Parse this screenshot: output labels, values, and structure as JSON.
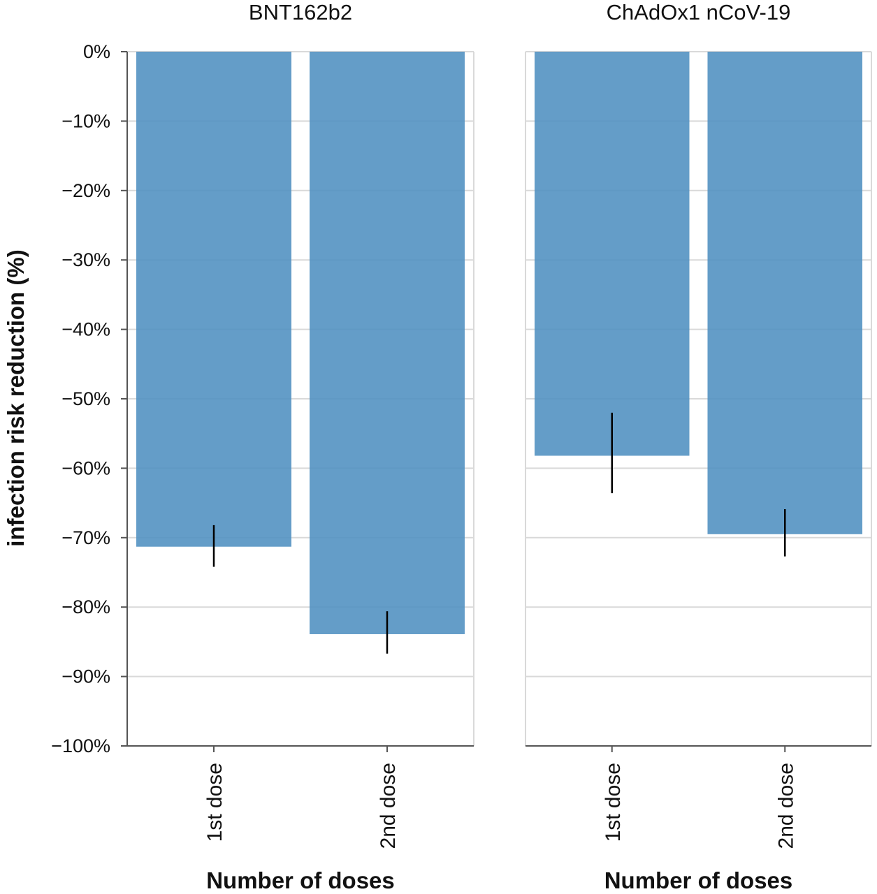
{
  "chart_data": {
    "type": "bar",
    "ylabel": "infection risk reduction (%)",
    "xlabel": "Number of doses",
    "ylim": [
      -100,
      0
    ],
    "yticks": [
      0,
      -10,
      -20,
      -30,
      -40,
      -50,
      -60,
      -70,
      -80,
      -90,
      -100
    ],
    "ytick_labels": [
      "0%",
      "−10%",
      "−20%",
      "−30%",
      "−40%",
      "−50%",
      "−60%",
      "−70%",
      "−80%",
      "−90%",
      "−100%"
    ],
    "grid": true,
    "bar_color": "#4f8fc0",
    "panels": [
      {
        "title": "BNT162b2",
        "categories": [
          "1st dose",
          "2nd dose"
        ],
        "values": [
          -71.3,
          -83.9
        ],
        "error_low": [
          -74.2,
          -86.7
        ],
        "error_high": [
          -68.2,
          -80.6
        ]
      },
      {
        "title": "ChAdOx1 nCoV-19",
        "categories": [
          "1st dose",
          "2nd dose"
        ],
        "values": [
          -58.2,
          -69.5
        ],
        "error_low": [
          -63.6,
          -72.7
        ],
        "error_high": [
          -52.0,
          -65.9
        ]
      }
    ]
  }
}
